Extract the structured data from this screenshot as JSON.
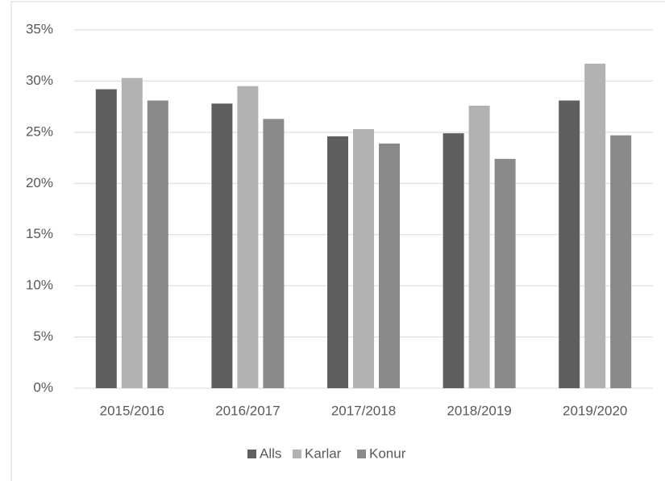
{
  "chart_data": {
    "type": "bar",
    "categories": [
      "2015/2016",
      "2016/2017",
      "2017/2018",
      "2018/2019",
      "2019/2020"
    ],
    "series": [
      {
        "name": "Alls",
        "color": "#5f5f5f",
        "values": [
          29.2,
          27.8,
          24.6,
          24.9,
          28.1
        ]
      },
      {
        "name": "Karlar",
        "color": "#b2b2b2",
        "values": [
          30.3,
          29.5,
          25.3,
          27.6,
          31.7
        ]
      },
      {
        "name": "Konur",
        "color": "#8a8a8a",
        "values": [
          28.1,
          26.3,
          23.9,
          22.4,
          24.7
        ]
      }
    ],
    "ylim": [
      0,
      35
    ],
    "yticks": [
      {
        "value": 0,
        "label": "0%"
      },
      {
        "value": 5,
        "label": "5%"
      },
      {
        "value": 10,
        "label": "10%"
      },
      {
        "value": 15,
        "label": "15%"
      },
      {
        "value": 20,
        "label": "20%"
      },
      {
        "value": 25,
        "label": "25%"
      },
      {
        "value": 30,
        "label": "30%"
      },
      {
        "value": 35,
        "label": "35%"
      }
    ],
    "grid": true,
    "legend": "bottom"
  }
}
